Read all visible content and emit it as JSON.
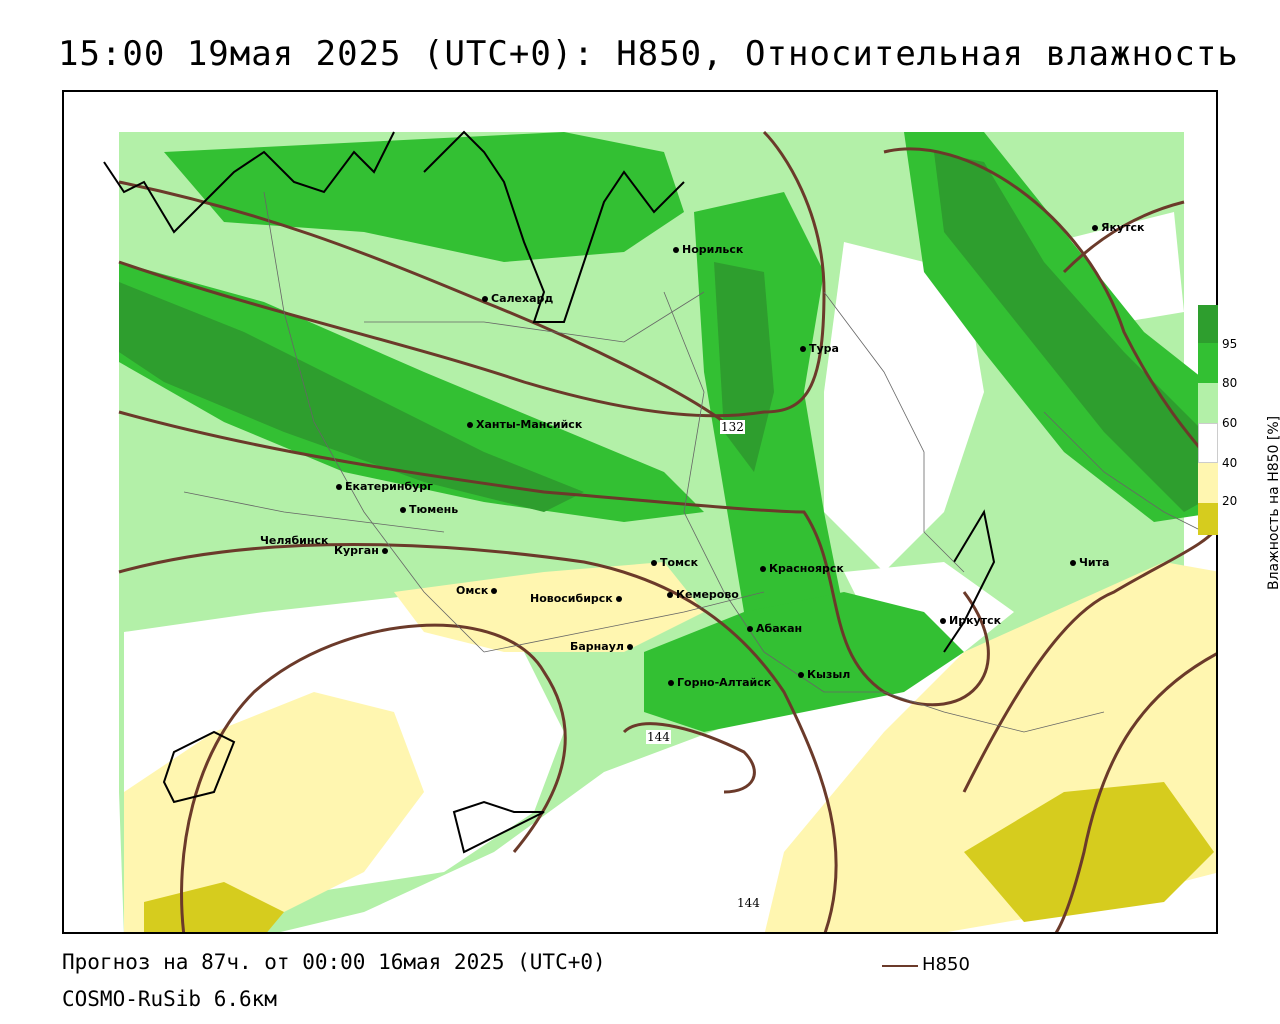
{
  "title": "15:00 19мая 2025 (UTC+0): H850, Относительная влажность",
  "forecast_line": "Прогноз на 87ч. от 00:00 16мая 2025 (UTC+0)",
  "model_line": "COSMO-RuSib 6.6км",
  "line_legend": {
    "label": "H850",
    "color": "#6b3a2a"
  },
  "colorbar": {
    "title": "Влажность на H850 [%]",
    "ticks": [
      "95",
      "80",
      "60",
      "40",
      "20"
    ],
    "colors": {
      "very_humid": "#2e9e2e",
      "humid": "#33c033",
      "moist": "#b3f0a8",
      "dry": "#ffffff",
      "drier": "#fff6b0",
      "driest": "#d6cc1e"
    }
  },
  "isoline_labels": [
    "132",
    "144",
    "144"
  ],
  "cities": [
    {
      "name": "Норильск"
    },
    {
      "name": "Якутск"
    },
    {
      "name": "Салехард"
    },
    {
      "name": "Тура"
    },
    {
      "name": "Ханты-Мансийск"
    },
    {
      "name": "Екатеринбург"
    },
    {
      "name": "Тюмень"
    },
    {
      "name": "Челябинск"
    },
    {
      "name": "Курган"
    },
    {
      "name": "Омск"
    },
    {
      "name": "Новосибирск"
    },
    {
      "name": "Томск"
    },
    {
      "name": "Кемерово"
    },
    {
      "name": "Красноярск"
    },
    {
      "name": "Абакан"
    },
    {
      "name": "Барнаул"
    },
    {
      "name": "Горно-Алтайск"
    },
    {
      "name": "Кызыл"
    },
    {
      "name": "Иркутск"
    },
    {
      "name": "Чита"
    }
  ]
}
